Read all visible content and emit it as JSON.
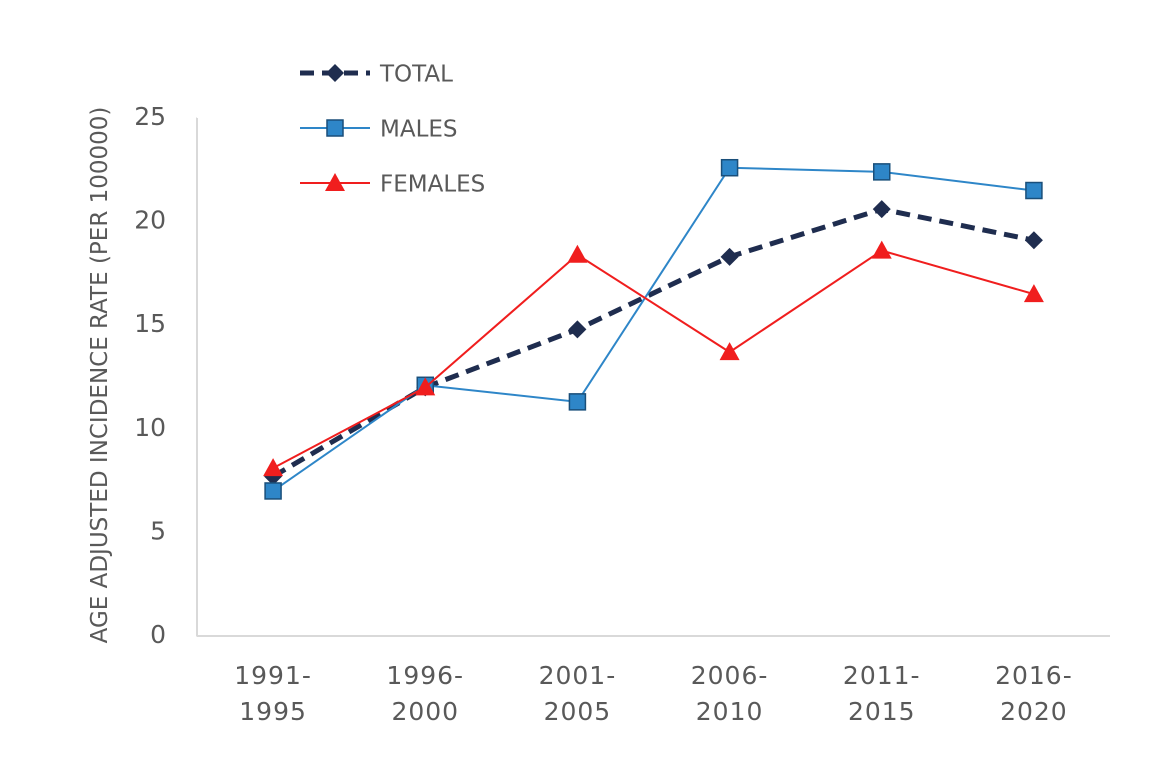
{
  "chart_data": {
    "type": "line",
    "y_label": "AGE ADJUSTED INCIDENCE RATE (PER 100000)",
    "categories": [
      "1991-\n1995",
      "1996-\n2000",
      "2001-\n2005",
      "2006-\n2010",
      "2011-\n2015",
      "2016-\n2020"
    ],
    "series": [
      {
        "name": "TOTAL",
        "color": "#1f2d4f",
        "dash": true,
        "marker": "diamond",
        "values": [
          7.7,
          12.0,
          14.8,
          18.3,
          20.6,
          19.1
        ]
      },
      {
        "name": "MALES",
        "color": "#2e86c8",
        "dash": false,
        "marker": "square",
        "values": [
          7.0,
          12.1,
          11.3,
          22.6,
          22.4,
          21.5
        ]
      },
      {
        "name": "FEMALES",
        "color": "#f01e1e",
        "dash": false,
        "marker": "triangle",
        "values": [
          8.1,
          12.0,
          18.4,
          13.7,
          18.6,
          16.5
        ]
      }
    ],
    "ylim": [
      0,
      25
    ],
    "yticks": [
      0,
      5,
      10,
      15,
      20,
      25
    ]
  }
}
